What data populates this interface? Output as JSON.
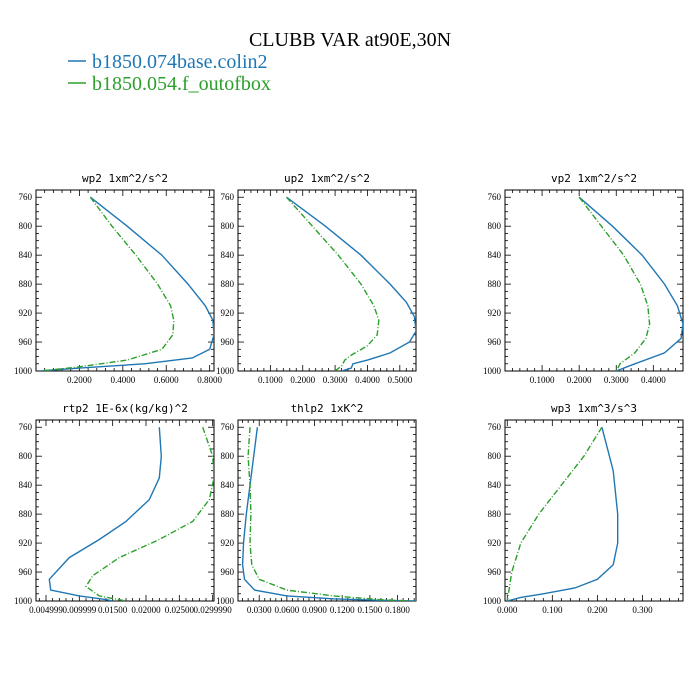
{
  "title": "CLUBB VAR at90E,30N",
  "legend": [
    {
      "label": "b1850.074base.colin2",
      "color": "#1f77b4",
      "dash": "solid"
    },
    {
      "label": "b1850.054.f_outofbox",
      "color": "#2ca02c",
      "dash": "dashdot"
    }
  ],
  "chart_data": [
    {
      "type": "line",
      "title": "wp2  1xm^2/s^2",
      "xlim": [
        0.0,
        0.82
      ],
      "ylim": [
        1000,
        750
      ],
      "xticks": [
        0.2,
        0.4,
        0.6,
        0.8
      ],
      "xtick_labels": [
        "0.2000",
        "0.4000",
        "0.6000",
        "0.8000"
      ],
      "yticks": [
        760,
        800,
        840,
        880,
        920,
        960,
        1000
      ],
      "series": [
        {
          "name": "b1850.074base.colin2",
          "x": [
            0.25,
            0.42,
            0.58,
            0.7,
            0.78,
            0.815,
            0.82,
            0.8,
            0.72,
            0.5,
            0.2,
            0.02
          ],
          "y": [
            760,
            800,
            840,
            880,
            910,
            930,
            950,
            970,
            982,
            990,
            996,
            1000
          ]
        },
        {
          "name": "b1850.054.f_outofbox",
          "x": [
            0.25,
            0.35,
            0.46,
            0.56,
            0.62,
            0.635,
            0.63,
            0.58,
            0.42,
            0.18,
            0.02
          ],
          "y": [
            760,
            800,
            840,
            880,
            910,
            930,
            950,
            970,
            985,
            995,
            1000
          ]
        }
      ]
    },
    {
      "type": "line",
      "title": "up2  1xm^2/s^2",
      "xlim": [
        0.0,
        0.55
      ],
      "ylim": [
        1000,
        750
      ],
      "xticks": [
        0.1,
        0.2,
        0.3,
        0.4,
        0.5
      ],
      "xtick_labels": [
        "0.1000",
        "0.2000",
        "0.3000",
        "0.4000",
        "0.5000"
      ],
      "yticks": [
        760,
        800,
        840,
        880,
        920,
        960,
        1000
      ],
      "series": [
        {
          "name": "b1850.074base.colin2",
          "x": [
            0.15,
            0.27,
            0.38,
            0.47,
            0.52,
            0.545,
            0.55,
            0.53,
            0.47,
            0.4,
            0.355,
            0.35,
            0.32
          ],
          "y": [
            760,
            800,
            840,
            880,
            905,
            925,
            945,
            960,
            975,
            985,
            990,
            996,
            1000
          ]
        },
        {
          "name": "b1850.054.f_outofbox",
          "x": [
            0.15,
            0.23,
            0.31,
            0.38,
            0.42,
            0.435,
            0.43,
            0.4,
            0.35,
            0.33,
            0.32,
            0.3
          ],
          "y": [
            760,
            800,
            840,
            880,
            910,
            930,
            950,
            965,
            978,
            985,
            993,
            1000
          ]
        }
      ]
    },
    {
      "type": "line",
      "title": "vp2  1xm^2/s^2",
      "xlim": [
        0.0,
        0.48
      ],
      "ylim": [
        1000,
        750
      ],
      "xticks": [
        0.1,
        0.2,
        0.3,
        0.4
      ],
      "xtick_labels": [
        "0.1000",
        "0.2000",
        "0.3000",
        "0.4000"
      ],
      "yticks": [
        760,
        800,
        840,
        880,
        920,
        960,
        1000
      ],
      "series": [
        {
          "name": "b1850.074base.colin2",
          "x": [
            0.2,
            0.29,
            0.37,
            0.43,
            0.465,
            0.48,
            0.475,
            0.43,
            0.35,
            0.3
          ],
          "y": [
            760,
            800,
            840,
            880,
            910,
            935,
            955,
            975,
            990,
            1000
          ]
        },
        {
          "name": "b1850.054.f_outofbox",
          "x": [
            0.2,
            0.26,
            0.32,
            0.365,
            0.385,
            0.39,
            0.38,
            0.35,
            0.31,
            0.3
          ],
          "y": [
            760,
            800,
            840,
            880,
            910,
            935,
            955,
            975,
            990,
            1000
          ]
        }
      ]
    },
    {
      "type": "line",
      "title": "rtp2  1E-6x(kg/kg)^2",
      "xlim": [
        0.0035,
        0.0302
      ],
      "ylim": [
        1000,
        750
      ],
      "xticks": [
        0.005,
        0.01,
        0.015,
        0.02,
        0.025,
        0.03
      ],
      "xtick_labels": [
        "0.004999",
        "0.009999",
        "0.01500",
        "0.02000",
        "0.02500",
        "0.0299990"
      ],
      "yticks": [
        760,
        800,
        840,
        880,
        920,
        960,
        1000
      ],
      "series": [
        {
          "name": "b1850.074base.colin2",
          "x": [
            0.022,
            0.0223,
            0.022,
            0.0205,
            0.017,
            0.013,
            0.0085,
            0.0055,
            0.0057,
            0.01,
            0.014,
            0.015
          ],
          "y": [
            760,
            800,
            830,
            860,
            890,
            915,
            940,
            970,
            985,
            993,
            998,
            1000
          ]
        },
        {
          "name": "b1850.054.f_outofbox",
          "x": [
            0.0285,
            0.03,
            0.0302,
            0.0295,
            0.027,
            0.022,
            0.016,
            0.012,
            0.011,
            0.013,
            0.017
          ],
          "y": [
            760,
            800,
            830,
            860,
            890,
            915,
            940,
            965,
            980,
            993,
            1000
          ]
        }
      ]
    },
    {
      "type": "line",
      "title": "thlp2  1xK^2",
      "xlim": [
        0.007,
        0.2
      ],
      "ylim": [
        1000,
        750
      ],
      "xticks": [
        0.03,
        0.06,
        0.09,
        0.12,
        0.15,
        0.18
      ],
      "xtick_labels": [
        "0.0300",
        "0.0600",
        "0.0900",
        "0.1200",
        "0.1500",
        "0.1800"
      ],
      "yticks": [
        760,
        800,
        840,
        880,
        920,
        960,
        1000
      ],
      "series": [
        {
          "name": "b1850.074base.colin2",
          "x": [
            0.028,
            0.024,
            0.02,
            0.016,
            0.013,
            0.012,
            0.014,
            0.025,
            0.06,
            0.11,
            0.16,
            0.2
          ],
          "y": [
            760,
            800,
            840,
            880,
            920,
            950,
            970,
            985,
            993,
            997,
            999,
            1000
          ]
        },
        {
          "name": "b1850.054.f_outofbox",
          "x": [
            0.02,
            0.018,
            0.02,
            0.021,
            0.02,
            0.022,
            0.03,
            0.06,
            0.11,
            0.16,
            0.195
          ],
          "y": [
            760,
            800,
            840,
            880,
            920,
            950,
            970,
            985,
            993,
            998,
            1000
          ]
        }
      ]
    },
    {
      "type": "line",
      "title": "wp3  1xm^3/s^3",
      "xlim": [
        -0.005,
        0.39
      ],
      "ylim": [
        1000,
        750
      ],
      "xticks": [
        0.0,
        0.1,
        0.2,
        0.3
      ],
      "xtick_labels": [
        "0.000",
        "0.100",
        "0.200",
        "0.300"
      ],
      "yticks": [
        760,
        800,
        840,
        880,
        920,
        960,
        1000
      ],
      "series": [
        {
          "name": "b1850.074base.colin2",
          "x": [
            0.21,
            0.235,
            0.245,
            0.245,
            0.235,
            0.2,
            0.15,
            0.08,
            0.03,
            0.0
          ],
          "y": [
            760,
            820,
            880,
            920,
            950,
            970,
            982,
            990,
            995,
            1000
          ]
        },
        {
          "name": "b1850.054.f_outofbox",
          "x": [
            0.21,
            0.17,
            0.12,
            0.07,
            0.03,
            0.01,
            0.0
          ],
          "y": [
            760,
            800,
            840,
            880,
            920,
            960,
            1000
          ]
        }
      ]
    }
  ]
}
